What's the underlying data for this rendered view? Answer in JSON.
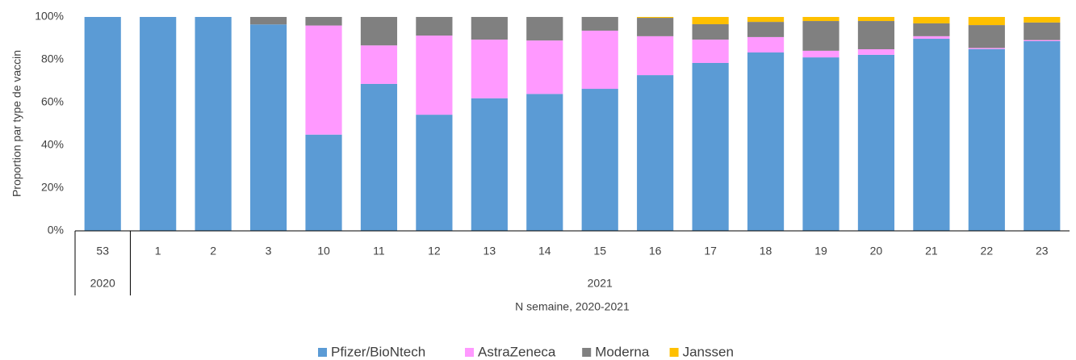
{
  "chart_data": {
    "type": "stacked_bar",
    "y_label": "Proportion par type de vaccin",
    "x_label": "N semaine, 2020-2021",
    "categories": [
      "53",
      "1",
      "2",
      "3",
      "10",
      "11",
      "12",
      "13",
      "14",
      "15",
      "16",
      "17",
      "18",
      "19",
      "20",
      "21",
      "22",
      "23"
    ],
    "groups": [
      {
        "label": "2020",
        "span": 1
      },
      {
        "label": "2021",
        "span": 17
      }
    ],
    "series": [
      {
        "name": "Pfizer/BioNtech",
        "color": "#5b9bd5",
        "values": [
          100,
          100,
          100,
          96.5,
          45,
          68.7,
          54.3,
          62,
          64,
          66.4,
          72.8,
          78.5,
          83.4,
          81.1,
          82.3,
          89.8,
          85,
          88.7
        ]
      },
      {
        "name": "AstraZeneca",
        "color": "#ff99ff",
        "values": [
          0,
          0,
          0,
          0,
          51,
          18,
          37,
          27.4,
          25,
          27.2,
          18.2,
          10.9,
          7.2,
          3.1,
          2.6,
          1.2,
          0.5,
          0.5
        ]
      },
      {
        "name": "Moderna",
        "color": "#808080",
        "values": [
          0,
          0,
          0,
          3.5,
          4,
          13.3,
          8.7,
          10.6,
          11,
          6.4,
          8.6,
          7.2,
          7.1,
          13.9,
          13.2,
          6,
          10.7,
          8.2
        ]
      },
      {
        "name": "Janssen",
        "color": "#ffc000",
        "values": [
          0,
          0,
          0,
          0,
          0,
          0,
          0,
          0,
          0,
          0,
          0.4,
          3.4,
          2.3,
          1.9,
          1.9,
          3,
          3.8,
          2.6
        ]
      }
    ],
    "ylim": [
      0,
      100
    ],
    "yticks": [
      {
        "value": 0,
        "label": "0%"
      },
      {
        "value": 20,
        "label": "20%"
      },
      {
        "value": 40,
        "label": "40%"
      },
      {
        "value": 60,
        "label": "60%"
      },
      {
        "value": 80,
        "label": "80%"
      },
      {
        "value": 100,
        "label": "100%"
      }
    ],
    "legend": "bottom"
  }
}
